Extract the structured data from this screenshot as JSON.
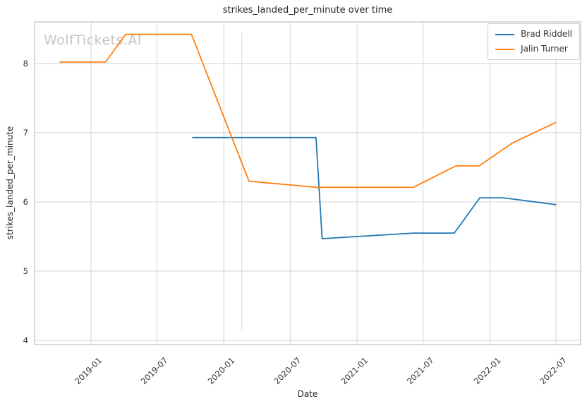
{
  "watermark": "WolfTickets.AI",
  "chart_data": {
    "type": "line",
    "title": "strikes_landed_per_minute over time",
    "xlabel": "Date",
    "ylabel": "strikes_landed_per_minute",
    "grid": true,
    "legend_position": "upper right",
    "x_domain": [
      "2018-07-30",
      "2022-09-07"
    ],
    "y_domain": [
      3.94,
      8.6
    ],
    "y_ticks": [
      4,
      5,
      6,
      7,
      8
    ],
    "x_ticks": [
      {
        "date": "2019-01-01",
        "label": "2019-01"
      },
      {
        "date": "2019-07-01",
        "label": "2019-07"
      },
      {
        "date": "2020-01-01",
        "label": "2020-01"
      },
      {
        "date": "2020-07-01",
        "label": "2020-07"
      },
      {
        "date": "2021-01-01",
        "label": "2021-01"
      },
      {
        "date": "2021-07-01",
        "label": "2021-07"
      },
      {
        "date": "2022-01-01",
        "label": "2022-01"
      },
      {
        "date": "2022-07-01",
        "label": "2022-07"
      }
    ],
    "series": [
      {
        "name": "Brad Riddell",
        "color": "#1f77b4",
        "points": [
          {
            "date": "2019-10-06",
            "value": 6.93
          },
          {
            "date": "2020-09-10",
            "value": 6.93
          },
          {
            "date": "2020-09-27",
            "value": 5.47
          },
          {
            "date": "2021-01-01",
            "value": 5.5
          },
          {
            "date": "2021-06-05",
            "value": 5.55
          },
          {
            "date": "2021-09-25",
            "value": 5.55
          },
          {
            "date": "2021-12-04",
            "value": 6.06
          },
          {
            "date": "2022-02-06",
            "value": 6.06
          },
          {
            "date": "2022-07-02",
            "value": 5.96
          }
        ]
      },
      {
        "name": "Jalin Turner",
        "color": "#ff7f0e",
        "points": [
          {
            "date": "2018-10-06",
            "value": 8.02
          },
          {
            "date": "2019-02-10",
            "value": 8.02
          },
          {
            "date": "2019-04-06",
            "value": 8.42
          },
          {
            "date": "2019-10-04",
            "value": 8.42
          },
          {
            "date": "2020-03-10",
            "value": 6.3
          },
          {
            "date": "2020-09-13",
            "value": 6.21
          },
          {
            "date": "2021-06-04",
            "value": 6.21
          },
          {
            "date": "2021-09-29",
            "value": 6.52
          },
          {
            "date": "2021-12-02",
            "value": 6.52
          },
          {
            "date": "2022-03-03",
            "value": 6.85
          },
          {
            "date": "2022-07-02",
            "value": 7.15
          }
        ],
        "error_bar": {
          "date": "2020-02-19",
          "low": 4.15,
          "high": 8.45
        }
      }
    ]
  }
}
